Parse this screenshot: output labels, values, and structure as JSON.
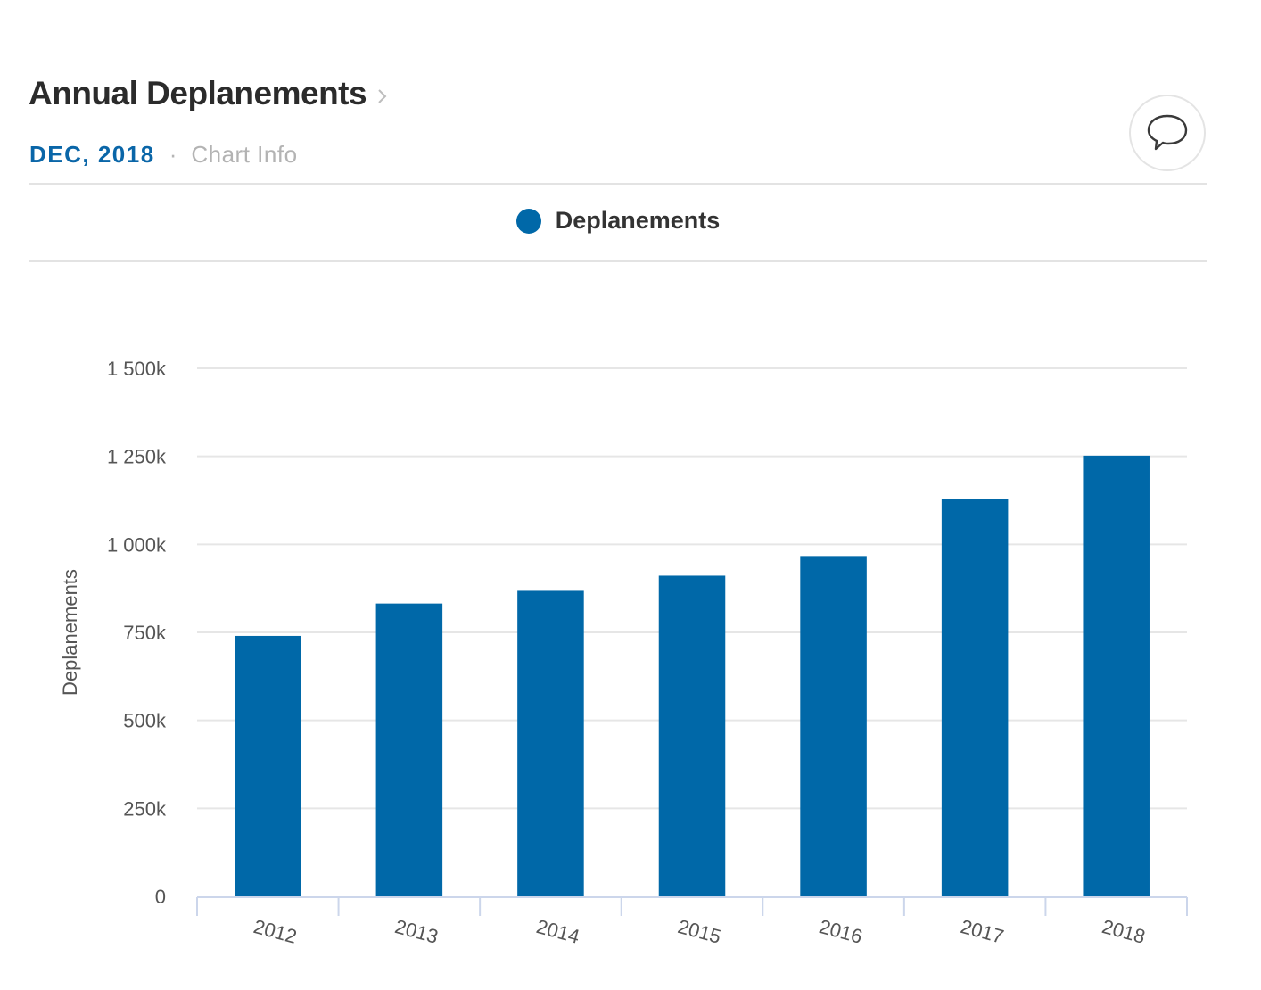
{
  "header": {
    "title": "Annual Deplanements",
    "date": "DEC, 2018",
    "separator": "·",
    "chart_info": "Chart Info"
  },
  "icons": {
    "title_chevron": "chevron-right-icon",
    "comment": "speech-bubble-icon"
  },
  "colors": {
    "bar": "#0068a8",
    "date": "#0a66a8"
  },
  "legend": {
    "label": "Deplanements",
    "color": "#0068a8"
  },
  "chart_data": {
    "type": "bar",
    "categories": [
      "2012",
      "2013",
      "2014",
      "2015",
      "2016",
      "2017",
      "2018"
    ],
    "series": [
      {
        "name": "Deplanements",
        "values": [
          740000,
          832000,
          868000,
          911000,
          967000,
          1130000,
          1252000
        ]
      }
    ],
    "ylabel": "Deplanements",
    "ylim": [
      0,
      1500000
    ],
    "yticks": [
      0,
      250000,
      500000,
      750000,
      1000000,
      1250000,
      1500000
    ],
    "ytick_labels": [
      "0",
      "250k",
      "500k",
      "750k",
      "1 000k",
      "1 250k",
      "1 500k"
    ],
    "grid": true,
    "legend_position": "top-center"
  }
}
